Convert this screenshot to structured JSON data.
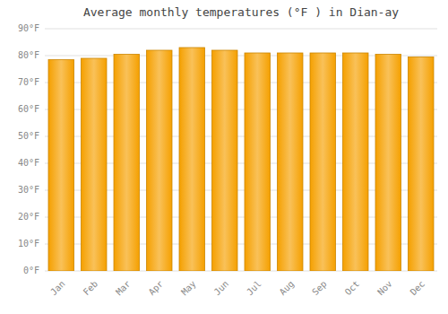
{
  "chart_data": {
    "type": "bar",
    "title": "Average monthly temperatures (°F ) in Dian-ay",
    "categories": [
      "Jan",
      "Feb",
      "Mar",
      "Apr",
      "May",
      "Jun",
      "Jul",
      "Aug",
      "Sep",
      "Oct",
      "Nov",
      "Dec"
    ],
    "values": [
      78.5,
      79.0,
      80.5,
      82.0,
      83.0,
      82.0,
      81.0,
      81.0,
      81.0,
      81.0,
      80.5,
      79.5
    ],
    "color": "#F5A000",
    "ylim": [
      0,
      90
    ],
    "yticks": [
      {
        "value": 0,
        "label": "0°F"
      },
      {
        "value": 10,
        "label": "10°F"
      },
      {
        "value": 20,
        "label": "20°F"
      },
      {
        "value": 30,
        "label": "30°F"
      },
      {
        "value": 40,
        "label": "40°F"
      },
      {
        "value": 50,
        "label": "50°F"
      },
      {
        "value": 60,
        "label": "60°F"
      },
      {
        "value": 70,
        "label": "70°F"
      },
      {
        "value": 80,
        "label": "80°F"
      },
      {
        "value": 90,
        "label": "90°F"
      }
    ],
    "grid": true
  }
}
